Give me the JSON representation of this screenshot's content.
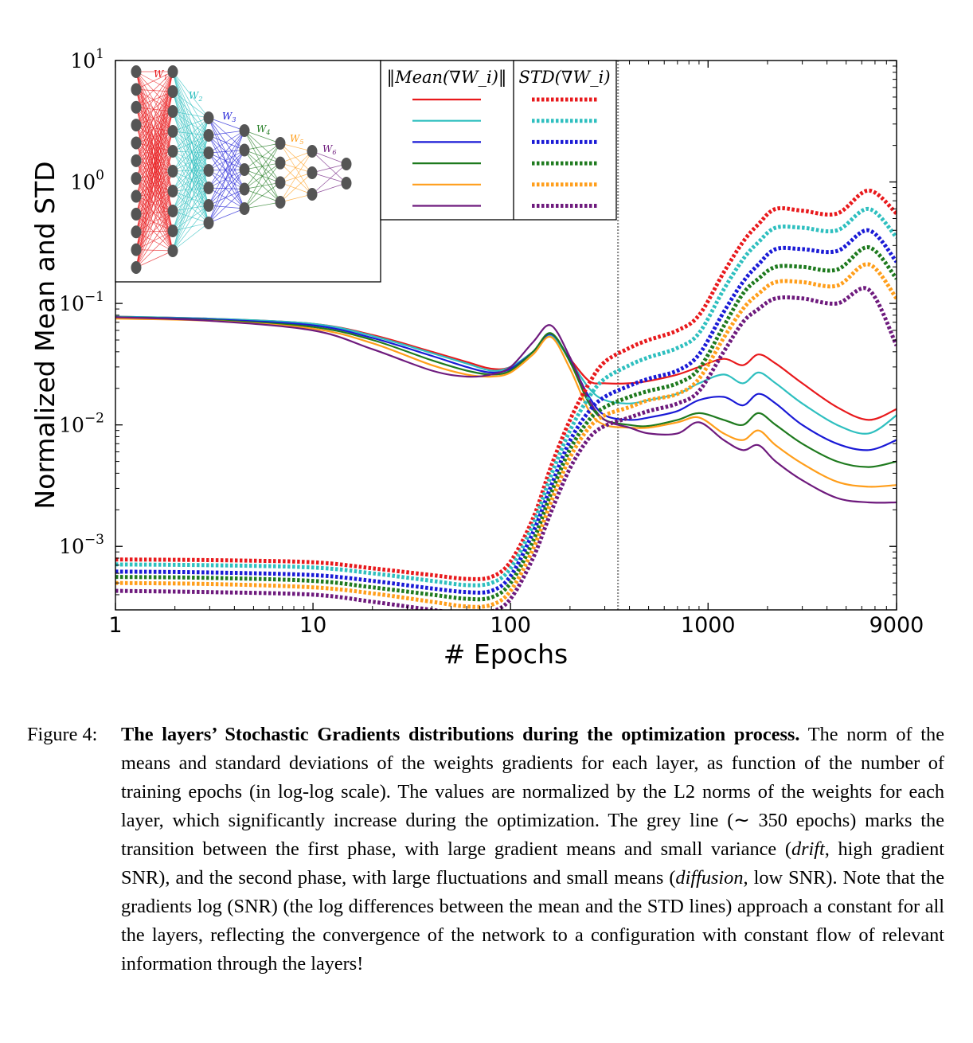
{
  "chart_data": {
    "type": "line",
    "xlabel": "# Epochs",
    "ylabel": "Normalized Mean and STD",
    "xscale": "log",
    "yscale": "log",
    "xlim": [
      1,
      9000
    ],
    "ylim": [
      0.0003,
      10
    ],
    "xticks": [
      1,
      10,
      100,
      1000,
      9000
    ],
    "xtick_labels": [
      "1",
      "10",
      "100",
      "1000",
      "9000"
    ],
    "yticks": [
      {
        "value": 10,
        "base": "10",
        "exp": "1"
      },
      {
        "value": 1,
        "base": "10",
        "exp": "0"
      },
      {
        "value": 0.1,
        "base": "10",
        "exp": "−1"
      },
      {
        "value": 0.01,
        "base": "10",
        "exp": "−2"
      },
      {
        "value": 0.001,
        "base": "10",
        "exp": "−3"
      }
    ],
    "transition_line_x": 350,
    "legend": {
      "mean_header": "‖Mean(∇W_i)‖",
      "std_header": "STD(∇W_i)"
    },
    "inset_weight_labels": [
      "W1",
      "W2",
      "W3",
      "W4",
      "W5",
      "W6"
    ],
    "inset_layer_sizes": [
      12,
      10,
      7,
      5,
      4,
      3,
      2
    ],
    "colors": [
      "#e8191c",
      "#2ebfbf",
      "#1a1ad6",
      "#1e7a1e",
      "#ff9e1b",
      "#6e1a7d"
    ],
    "x": [
      1,
      3,
      10,
      20,
      40,
      60,
      80,
      100,
      130,
      160,
      200,
      250,
      300,
      400,
      500,
      700,
      900,
      1200,
      1500,
      1800,
      2200,
      3000,
      4500,
      6500,
      9000
    ],
    "series": [
      {
        "kind": "mean",
        "layer": 1,
        "values": [
          0.078,
          0.075,
          0.068,
          0.055,
          0.04,
          0.033,
          0.029,
          0.03,
          0.04,
          0.055,
          0.035,
          0.023,
          0.022,
          0.022,
          0.023,
          0.026,
          0.03,
          0.035,
          0.031,
          0.038,
          0.032,
          0.022,
          0.014,
          0.011,
          0.0135
        ]
      },
      {
        "kind": "mean",
        "layer": 2,
        "values": [
          0.078,
          0.075,
          0.068,
          0.054,
          0.039,
          0.032,
          0.028,
          0.03,
          0.04,
          0.054,
          0.034,
          0.02,
          0.016,
          0.015,
          0.016,
          0.018,
          0.022,
          0.026,
          0.022,
          0.027,
          0.022,
          0.015,
          0.01,
          0.0085,
          0.012
        ]
      },
      {
        "kind": "mean",
        "layer": 3,
        "values": [
          0.077,
          0.074,
          0.066,
          0.052,
          0.037,
          0.03,
          0.027,
          0.029,
          0.04,
          0.056,
          0.034,
          0.017,
          0.012,
          0.011,
          0.0115,
          0.013,
          0.016,
          0.017,
          0.0145,
          0.018,
          0.015,
          0.01,
          0.007,
          0.0062,
          0.0075
        ]
      },
      {
        "kind": "mean",
        "layer": 4,
        "values": [
          0.077,
          0.073,
          0.064,
          0.05,
          0.034,
          0.028,
          0.026,
          0.028,
          0.04,
          0.057,
          0.033,
          0.015,
          0.011,
          0.01,
          0.0098,
          0.011,
          0.0125,
          0.011,
          0.01,
          0.0125,
          0.01,
          0.007,
          0.005,
          0.0045,
          0.005
        ]
      },
      {
        "kind": "mean",
        "layer": 5,
        "values": [
          0.075,
          0.072,
          0.062,
          0.047,
          0.031,
          0.026,
          0.025,
          0.027,
          0.038,
          0.053,
          0.029,
          0.013,
          0.01,
          0.0095,
          0.0095,
          0.0105,
          0.0115,
          0.0085,
          0.0075,
          0.009,
          0.0068,
          0.0048,
          0.0034,
          0.0031,
          0.0032
        ]
      },
      {
        "kind": "mean",
        "layer": 6,
        "values": [
          0.077,
          0.072,
          0.06,
          0.042,
          0.028,
          0.025,
          0.026,
          0.03,
          0.048,
          0.066,
          0.036,
          0.016,
          0.011,
          0.0095,
          0.0085,
          0.0085,
          0.0105,
          0.0075,
          0.0062,
          0.0068,
          0.005,
          0.0035,
          0.0025,
          0.0023,
          0.0023
        ]
      },
      {
        "kind": "std",
        "layer": 1,
        "values": [
          0.00078,
          0.00077,
          0.00074,
          0.00066,
          0.00058,
          0.00054,
          0.00056,
          0.00075,
          0.0017,
          0.0045,
          0.011,
          0.022,
          0.033,
          0.043,
          0.05,
          0.06,
          0.08,
          0.18,
          0.32,
          0.45,
          0.6,
          0.58,
          0.55,
          0.85,
          0.55
        ]
      },
      {
        "kind": "std",
        "layer": 2,
        "values": [
          0.00071,
          0.0007,
          0.00067,
          0.0006,
          0.00052,
          0.00048,
          0.0005,
          0.00066,
          0.0015,
          0.0038,
          0.009,
          0.017,
          0.024,
          0.031,
          0.036,
          0.043,
          0.057,
          0.13,
          0.23,
          0.32,
          0.42,
          0.42,
          0.4,
          0.6,
          0.35
        ]
      },
      {
        "kind": "std",
        "layer": 3,
        "values": [
          0.00062,
          0.00061,
          0.00058,
          0.00052,
          0.00045,
          0.00042,
          0.00043,
          0.00057,
          0.0013,
          0.0031,
          0.0074,
          0.013,
          0.017,
          0.021,
          0.024,
          0.028,
          0.038,
          0.085,
          0.15,
          0.21,
          0.28,
          0.28,
          0.27,
          0.4,
          0.22
        ]
      },
      {
        "kind": "std",
        "layer": 4,
        "values": [
          0.00056,
          0.00055,
          0.00052,
          0.00046,
          0.0004,
          0.00037,
          0.00038,
          0.0005,
          0.0011,
          0.0027,
          0.0063,
          0.011,
          0.014,
          0.017,
          0.019,
          0.022,
          0.029,
          0.065,
          0.12,
          0.16,
          0.2,
          0.2,
          0.19,
          0.29,
          0.16
        ]
      },
      {
        "kind": "std",
        "layer": 5,
        "values": [
          0.0005,
          0.00049,
          0.00046,
          0.00041,
          0.00035,
          0.00032,
          0.00033,
          0.00043,
          0.00095,
          0.0023,
          0.0054,
          0.0095,
          0.012,
          0.014,
          0.016,
          0.018,
          0.024,
          0.052,
          0.09,
          0.12,
          0.15,
          0.15,
          0.14,
          0.21,
          0.11
        ]
      },
      {
        "kind": "std",
        "layer": 6,
        "values": [
          0.00043,
          0.00042,
          0.0004,
          0.00035,
          0.0003,
          0.00028,
          0.00029,
          0.00037,
          0.0008,
          0.0019,
          0.0044,
          0.0078,
          0.0098,
          0.0115,
          0.013,
          0.015,
          0.019,
          0.04,
          0.07,
          0.09,
          0.11,
          0.11,
          0.1,
          0.13,
          0.045
        ]
      }
    ]
  },
  "caption": {
    "label": "Figure 4:",
    "title": "The layers’ Stochastic Gradients distributions during the optimization process.",
    "seg1": " The norm of the means and standard deviations of the weights gradients for each layer, as function of the number of training epochs (in log-log scale). The values are normalized by the L2 norms of the weights for each layer, which significantly increase during the optimization. The grey line (∼ 350 epochs) marks the transition between the first phase, with large gradient means and small variance (",
    "em1": "drift",
    "seg2": ", high gradient SNR), and the second phase, with large fluctuations and small means (",
    "em2": "diffusion",
    "seg3": ", low SNR). Note that the gradients log (SNR) (the log differences between the mean and the STD lines) approach a constant for all the layers, reflecting the convergence of the network to a configuration with constant flow of relevant information through the layers!"
  }
}
